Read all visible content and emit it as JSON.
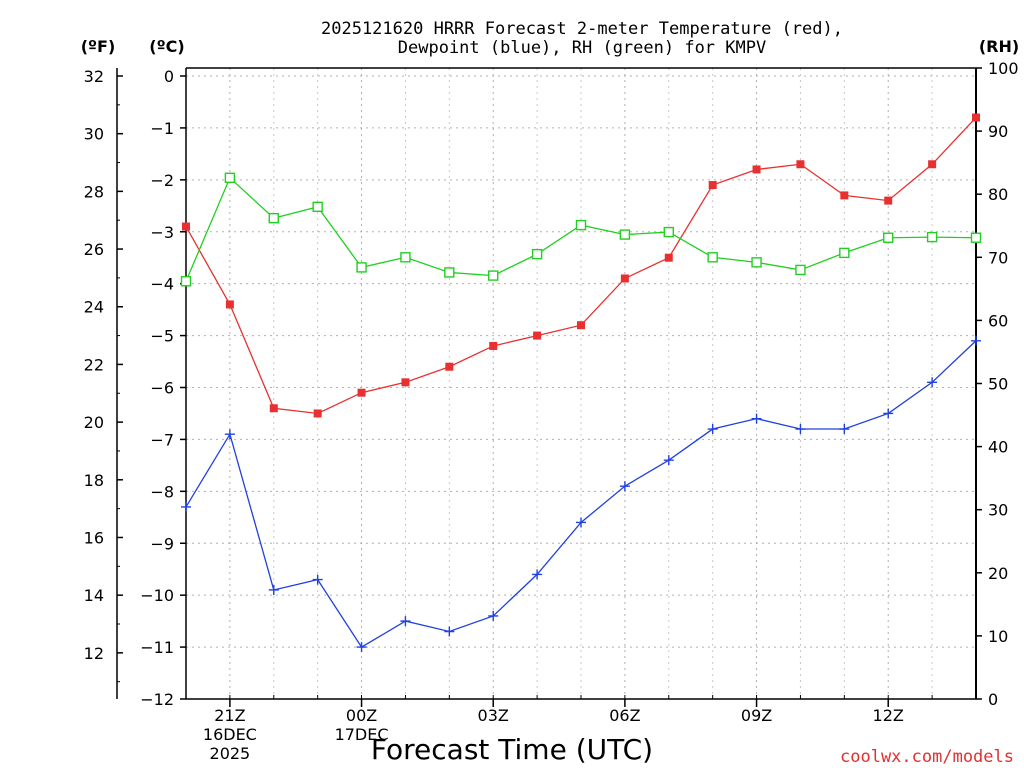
{
  "chart_data": {
    "type": "line",
    "title_lines": [
      "2025121620 HRRR Forecast 2-meter Temperature (red),",
      "Dewpoint (blue), RH (green) for KMPV"
    ],
    "xlabel": "Forecast Time (UTC)",
    "credit": "coolwx.com/models",
    "units": {
      "fahrenheit": "(ºF)",
      "celsius": "(ºC)",
      "rh": "(RH)"
    },
    "x_range": [
      0,
      18
    ],
    "x_ticks": [
      {
        "x": 1,
        "lines": [
          "21Z",
          "16DEC",
          "2025"
        ]
      },
      {
        "x": 4,
        "lines": [
          "00Z",
          "17DEC"
        ]
      },
      {
        "x": 7,
        "lines": [
          "03Z"
        ]
      },
      {
        "x": 10,
        "lines": [
          "06Z"
        ]
      },
      {
        "x": 13,
        "lines": [
          "09Z"
        ]
      },
      {
        "x": 16,
        "lines": [
          "12Z"
        ]
      }
    ],
    "celsius_axis": {
      "range": [
        -12,
        0
      ],
      "ticks": [
        "0",
        "−1",
        "−2",
        "−3",
        "−4",
        "−5",
        "−6",
        "−7",
        "−8",
        "−9",
        "−10",
        "−11",
        "−12"
      ]
    },
    "fahrenheit_axis": {
      "ticks": [
        "32",
        "30",
        "28",
        "26",
        "24",
        "22",
        "20",
        "18",
        "16",
        "14",
        "12"
      ]
    },
    "rh_axis": {
      "range": [
        0,
        100
      ],
      "ticks": [
        "100",
        "90",
        "80",
        "70",
        "60",
        "50",
        "40",
        "30",
        "20",
        "10",
        "0"
      ]
    },
    "series": [
      {
        "name": "Temperature",
        "axis": "celsius",
        "color": "#e83030",
        "marker": "filled-square",
        "x": [
          0,
          1,
          2,
          3,
          4,
          5,
          6,
          7,
          8,
          9,
          10,
          11,
          12,
          13,
          14,
          15,
          16,
          17,
          18
        ],
        "values": [
          -2.9,
          -4.4,
          -6.4,
          -6.5,
          -6.1,
          -5.9,
          -5.6,
          -5.2,
          -5.0,
          -4.8,
          -3.9,
          -3.5,
          -2.1,
          -1.8,
          -1.7,
          -2.3,
          -2.4,
          -1.7,
          -0.8
        ]
      },
      {
        "name": "Dewpoint",
        "axis": "celsius",
        "color": "#2040e0",
        "marker": "plus",
        "x": [
          0,
          1,
          2,
          3,
          4,
          5,
          6,
          7,
          8,
          9,
          10,
          11,
          12,
          13,
          14,
          15,
          16,
          17,
          18
        ],
        "values": [
          -8.3,
          -6.9,
          -9.9,
          -9.7,
          -11.0,
          -10.5,
          -10.7,
          -10.4,
          -9.6,
          -8.6,
          -7.9,
          -7.4,
          -6.8,
          -6.6,
          -6.8,
          -6.8,
          -6.5,
          -5.9,
          -5.1
        ]
      },
      {
        "name": "RH",
        "axis": "rh",
        "color": "#20d020",
        "marker": "open-square",
        "x": [
          0,
          1,
          2,
          3,
          4,
          5,
          6,
          7,
          8,
          9,
          10,
          11,
          12,
          13,
          14,
          15,
          16,
          17,
          18
        ],
        "values": [
          66.2,
          82.6,
          76.2,
          78.0,
          68.4,
          70.0,
          67.6,
          67.1,
          70.5,
          75.1,
          73.6,
          74.0,
          70.0,
          69.2,
          68.0,
          70.7,
          73.1,
          73.2,
          73.1
        ]
      }
    ],
    "grid": true
  }
}
